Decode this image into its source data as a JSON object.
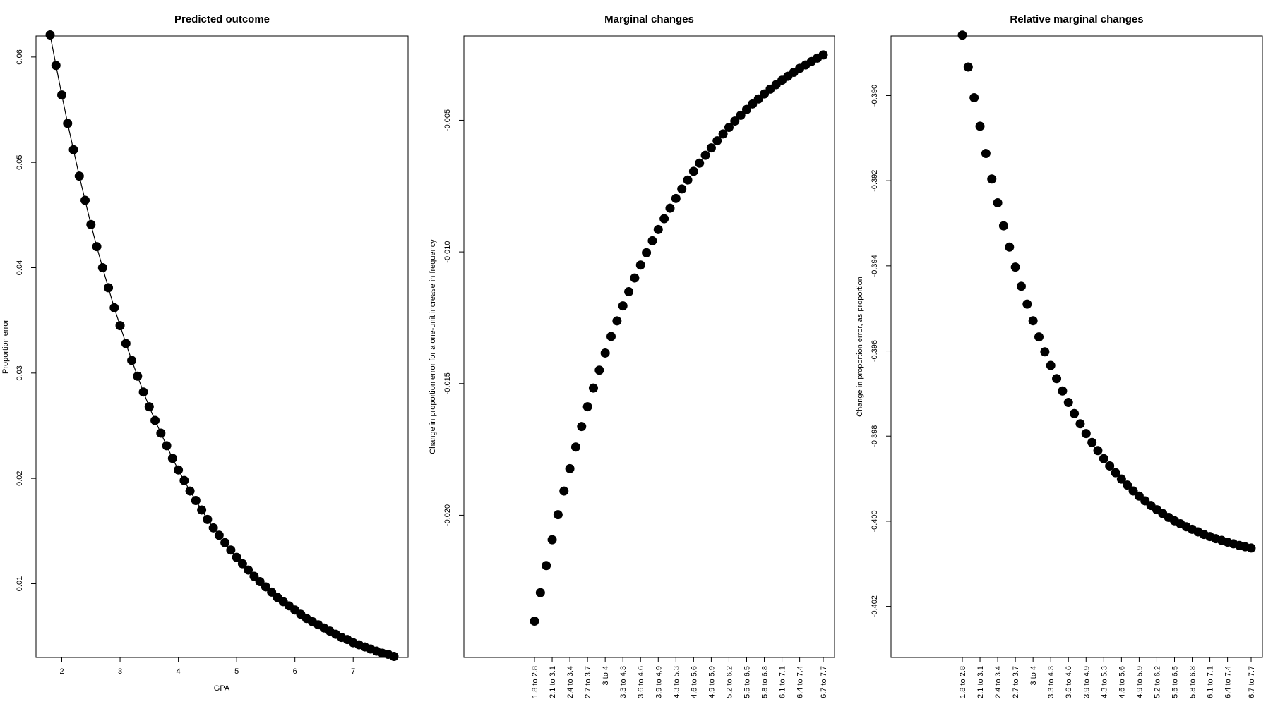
{
  "chart_data": [
    {
      "type": "line",
      "title": "Predicted outcome",
      "xlabel": "GPA",
      "ylabel": "Proportion error",
      "xlim": [
        1.8,
        7.7
      ],
      "ylim": [
        0.003,
        0.062
      ],
      "x_ticks": [
        2,
        3,
        4,
        5,
        6,
        7
      ],
      "y_ticks": [
        0.01,
        0.02,
        0.03,
        0.04,
        0.05,
        0.06
      ],
      "x_tick_labels": [
        "2",
        "3",
        "4",
        "5",
        "6",
        "7"
      ],
      "y_tick_labels": [
        "0.01",
        "0.02",
        "0.03",
        "0.04",
        "0.05",
        "0.06"
      ],
      "x": [
        1.8,
        1.9,
        2.0,
        2.1,
        2.2,
        2.3,
        2.4,
        2.5,
        2.6,
        2.7,
        2.8,
        2.9,
        3.0,
        3.1,
        3.2,
        3.3,
        3.4,
        3.5,
        3.6,
        3.7,
        3.8,
        3.9,
        4.0,
        4.1,
        4.2,
        4.3,
        4.4,
        4.5,
        4.6,
        4.7,
        4.8,
        4.9,
        5.0,
        5.1,
        5.2,
        5.3,
        5.4,
        5.5,
        5.6,
        5.7,
        5.8,
        5.9,
        6.0,
        6.1,
        6.2,
        6.3,
        6.4,
        6.5,
        6.6,
        6.7,
        6.8,
        6.9,
        7.0,
        7.1,
        7.2,
        7.3,
        7.4,
        7.5,
        7.6,
        7.7
      ],
      "values": [
        0.0621,
        0.0592,
        0.0564,
        0.0537,
        0.0512,
        0.0487,
        0.0464,
        0.0441,
        0.042,
        0.04,
        0.0381,
        0.0362,
        0.0345,
        0.0328,
        0.0312,
        0.0297,
        0.0282,
        0.0268,
        0.0255,
        0.0243,
        0.0231,
        0.0219,
        0.0208,
        0.0198,
        0.0188,
        0.0179,
        0.017,
        0.0161,
        0.0153,
        0.0146,
        0.0139,
        0.0132,
        0.0125,
        0.0119,
        0.0113,
        0.0107,
        0.0102,
        0.0097,
        0.0092,
        0.0087,
        0.0083,
        0.0079,
        0.0075,
        0.0071,
        0.0067,
        0.0064,
        0.0061,
        0.0058,
        0.0055,
        0.0052,
        0.0049,
        0.0047,
        0.0044,
        0.0042,
        0.004,
        0.0038,
        0.0036,
        0.0034,
        0.0033,
        0.0031
      ]
    },
    {
      "type": "scatter",
      "title": "Marginal changes",
      "xlabel": "",
      "ylabel": "Change in proportion error for a one-unit increase in frequency",
      "ylim": [
        -0.0254,
        -0.0018
      ],
      "y_ticks": [
        -0.02,
        -0.015,
        -0.01,
        -0.005
      ],
      "y_tick_labels": [
        "-0.020",
        "-0.015",
        "-0.010",
        "-0.005"
      ],
      "x_tick_labels": [
        "1.8 to 2.8",
        "2.1 to 3.1",
        "2.4 to 3.4",
        "2.7 to 3.7",
        "3 to 4",
        "3.3 to 4.3",
        "3.6 to 4.6",
        "3.9 to 4.9",
        "4.3 to 5.3",
        "4.6 to 5.6",
        "4.9 to 5.9",
        "5.2 to 6.2",
        "5.5 to 6.5",
        "5.8 to 6.8",
        "6.1 to 7.1",
        "6.4 to 7.4",
        "6.7 to 7.7"
      ],
      "values": [
        -0.02402,
        -0.02294,
        -0.02191,
        -0.02093,
        -0.01998,
        -0.01908,
        -0.01823,
        -0.01741,
        -0.01663,
        -0.01588,
        -0.01517,
        -0.01449,
        -0.01384,
        -0.01321,
        -0.01262,
        -0.01205,
        -0.01151,
        -0.01099,
        -0.0105,
        -0.01003,
        -0.00958,
        -0.00915,
        -0.00874,
        -0.00834,
        -0.00797,
        -0.00761,
        -0.00727,
        -0.00694,
        -0.00663,
        -0.00633,
        -0.00605,
        -0.00578,
        -0.00552,
        -0.00527,
        -0.00503,
        -0.00481,
        -0.00459,
        -0.00438,
        -0.00419,
        -0.004,
        -0.00382,
        -0.00365,
        -0.00348,
        -0.00333,
        -0.00318,
        -0.00303,
        -0.0029,
        -0.00277,
        -0.00264,
        -0.00252
      ]
    },
    {
      "type": "scatter",
      "title": "Relative marginal changes",
      "xlabel": "",
      "ylabel": "Change in proportion error, as proportion",
      "ylim": [
        -0.4032,
        -0.3886
      ],
      "y_ticks": [
        -0.402,
        -0.4,
        -0.398,
        -0.396,
        -0.394,
        -0.392,
        -0.39
      ],
      "y_tick_labels": [
        "-0.402",
        "-0.400",
        "-0.398",
        "-0.396",
        "-0.394",
        "-0.392",
        "-0.390"
      ],
      "x_tick_labels": [
        "1.8 to 2.8",
        "2.1 to 3.1",
        "2.4 to 3.4",
        "2.7 to 3.7",
        "3 to 4",
        "3.3 to 4.3",
        "3.6 to 4.6",
        "3.9 to 4.9",
        "4.3 to 5.3",
        "4.6 to 5.6",
        "4.9 to 5.9",
        "5.2 to 6.2",
        "5.5 to 6.5",
        "5.8 to 6.8",
        "6.1 to 7.1",
        "6.4 to 7.4",
        "6.7 to 7.7"
      ],
      "values": [
        -0.38858,
        -0.38933,
        -0.39005,
        -0.39072,
        -0.39136,
        -0.39196,
        -0.39252,
        -0.39306,
        -0.39356,
        -0.39403,
        -0.39448,
        -0.3949,
        -0.39529,
        -0.39567,
        -0.39602,
        -0.39634,
        -0.39665,
        -0.39694,
        -0.39721,
        -0.39747,
        -0.39771,
        -0.39794,
        -0.39815,
        -0.39834,
        -0.39853,
        -0.3987,
        -0.39886,
        -0.39901,
        -0.39915,
        -0.39929,
        -0.39941,
        -0.39952,
        -0.39963,
        -0.39973,
        -0.39982,
        -0.39991,
        -0.39999,
        -0.40006,
        -0.40013,
        -0.40019,
        -0.40025,
        -0.40031,
        -0.40036,
        -0.40041,
        -0.40045,
        -0.40049,
        -0.40053,
        -0.40057,
        -0.4006,
        -0.40063
      ]
    }
  ]
}
